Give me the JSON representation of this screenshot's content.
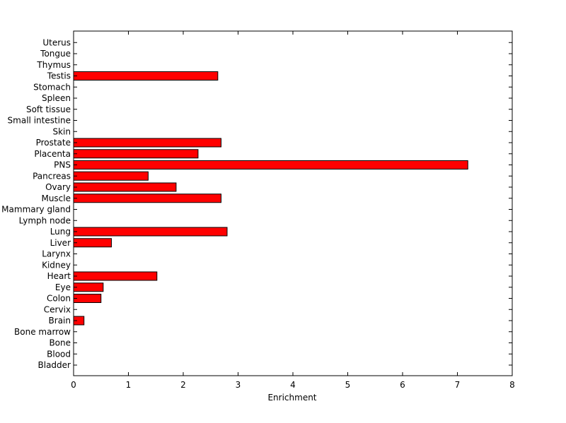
{
  "chart_data": {
    "type": "bar",
    "orientation": "horizontal",
    "xlabel": "Enrichment",
    "ylabel": "",
    "title": "",
    "xlim": [
      0,
      8
    ],
    "x_ticks": [
      0,
      1,
      2,
      3,
      4,
      5,
      6,
      7,
      8
    ],
    "grid": false,
    "bar_color": "#ff0000",
    "categories": [
      "Bladder",
      "Blood",
      "Bone",
      "Bone marrow",
      "Brain",
      "Cervix",
      "Colon",
      "Eye",
      "Heart",
      "Kidney",
      "Larynx",
      "Liver",
      "Lung",
      "Lymph node",
      "Mammary gland",
      "Muscle",
      "Ovary",
      "Pancreas",
      "PNS",
      "Placenta",
      "Prostate",
      "Skin",
      "Small intestine",
      "Soft tissue",
      "Spleen",
      "Stomach",
      "Testis",
      "Thymus",
      "Tongue",
      "Uterus"
    ],
    "values": [
      0,
      0,
      0,
      0,
      0.19,
      0,
      0.5,
      0.54,
      1.52,
      0,
      0,
      0.69,
      2.8,
      0,
      0,
      2.69,
      1.87,
      1.36,
      7.19,
      2.27,
      2.69,
      0,
      0,
      0,
      0,
      0,
      2.63,
      0,
      0,
      0
    ]
  }
}
